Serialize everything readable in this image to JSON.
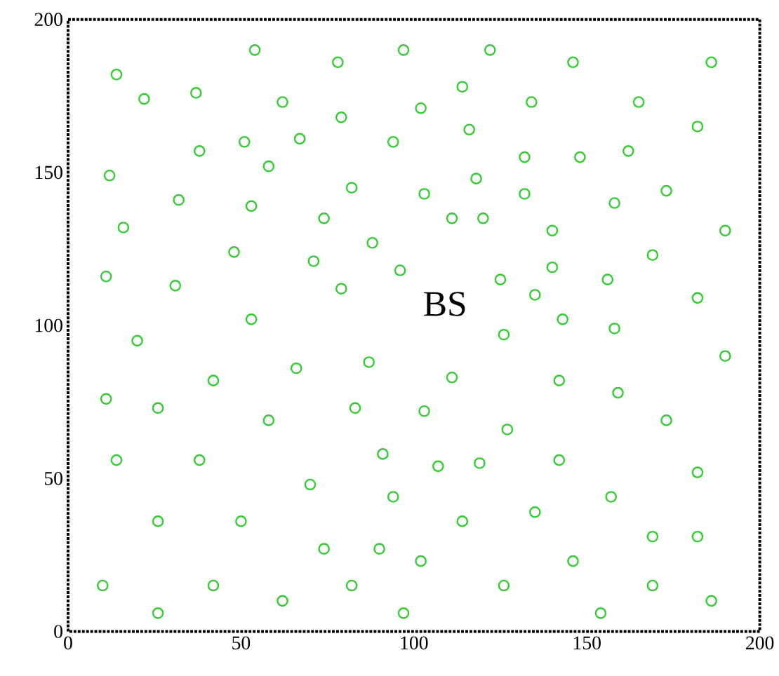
{
  "chart_data": {
    "type": "scatter",
    "marker": "circle",
    "color": "#33cc33",
    "xlim": [
      0,
      200
    ],
    "ylim": [
      0,
      200
    ],
    "xticks": [
      0,
      50,
      100,
      150,
      200
    ],
    "yticks": [
      0,
      50,
      100,
      150,
      200
    ],
    "annotations": [
      "BS"
    ],
    "x": [
      14,
      22,
      37,
      54,
      62,
      78,
      79,
      97,
      38,
      51,
      67,
      94,
      58,
      12,
      82,
      32,
      53,
      74,
      16,
      88,
      48,
      71,
      96,
      11,
      31,
      79,
      53,
      122,
      146,
      186,
      114,
      102,
      134,
      165,
      116,
      182,
      132,
      148,
      162,
      118,
      103,
      132,
      173,
      158,
      111,
      120,
      140,
      190,
      169,
      140,
      125,
      156,
      135,
      182,
      143,
      158,
      126,
      20,
      42,
      66,
      87,
      11,
      26,
      58,
      83,
      14,
      38,
      91,
      70,
      94,
      26,
      50,
      74,
      90,
      10,
      42,
      62,
      82,
      26,
      97,
      190,
      111,
      142,
      159,
      103,
      127,
      173,
      107,
      119,
      142,
      182,
      157,
      114,
      135,
      169,
      182,
      102,
      146,
      126,
      169,
      186,
      154
    ],
    "values": [
      182,
      174,
      176,
      190,
      173,
      186,
      168,
      190,
      157,
      160,
      161,
      160,
      152,
      149,
      145,
      141,
      139,
      135,
      132,
      127,
      124,
      121,
      118,
      116,
      113,
      112,
      102,
      190,
      186,
      186,
      178,
      171,
      173,
      173,
      164,
      165,
      155,
      155,
      157,
      148,
      143,
      143,
      144,
      140,
      135,
      135,
      131,
      131,
      123,
      119,
      115,
      115,
      110,
      109,
      102,
      99,
      97,
      95,
      82,
      86,
      88,
      76,
      73,
      69,
      73,
      56,
      56,
      58,
      48,
      44,
      36,
      36,
      27,
      27,
      15,
      15,
      10,
      15,
      6,
      6,
      90,
      83,
      82,
      78,
      72,
      66,
      69,
      54,
      55,
      56,
      52,
      44,
      36,
      39,
      31,
      31,
      23,
      23,
      15,
      15,
      10,
      6
    ]
  }
}
